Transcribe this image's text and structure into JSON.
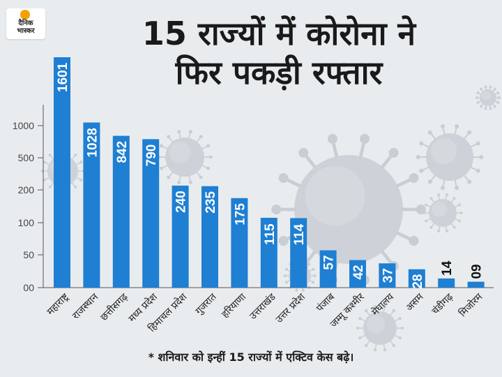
{
  "brand": {
    "logo_line1": "दैनिक",
    "logo_line2": "भास्कर"
  },
  "title_line1": "15 राज्यों में कोरोना ने",
  "title_line2": "फिर पकड़ी रफ्तार",
  "footnote": "* शनिवार को इन्हीं 15 राज्यों में एक्टिव केस बढ़े।",
  "colors": {
    "bar": "#1e7fd3",
    "bar_label": "#ffffff",
    "small_value_label": "#111111",
    "background": "#e9ecef",
    "virus": "#c9ced4"
  },
  "chart_data": {
    "type": "bar",
    "title": "15 राज्यों में कोरोना ने फिर पकड़ी रफ्तार",
    "xlabel": "",
    "ylabel": "",
    "y_scale": "nonlinear (piecewise)",
    "yticks": [
      "1000",
      "500",
      "200",
      "100",
      "50",
      "00"
    ],
    "ytick_values": [
      1000,
      500,
      200,
      100,
      50,
      0
    ],
    "grid": false,
    "legend": "none",
    "categories": [
      "महाराष्ट्र",
      "राजस्थान",
      "छत्तीसगढ़",
      "मध्य प्रदेश",
      "हिमाचल प्रदेश",
      "गुजरात",
      "हरियाणा",
      "उत्तराखंड",
      "उत्तर प्रदेश",
      "पंजाब",
      "जम्मू कश्मीर",
      "मेघालय",
      "असम",
      "चंडीगढ़",
      "मिजोरम"
    ],
    "values": [
      1601,
      1028,
      842,
      790,
      240,
      235,
      175,
      115,
      114,
      57,
      42,
      37,
      28,
      14,
      9
    ],
    "value_labels": [
      "1601",
      "1028",
      "842",
      "790",
      "240",
      "235",
      "175",
      "115",
      "114",
      "57",
      "42",
      "37",
      "28",
      "14",
      "09"
    ]
  }
}
